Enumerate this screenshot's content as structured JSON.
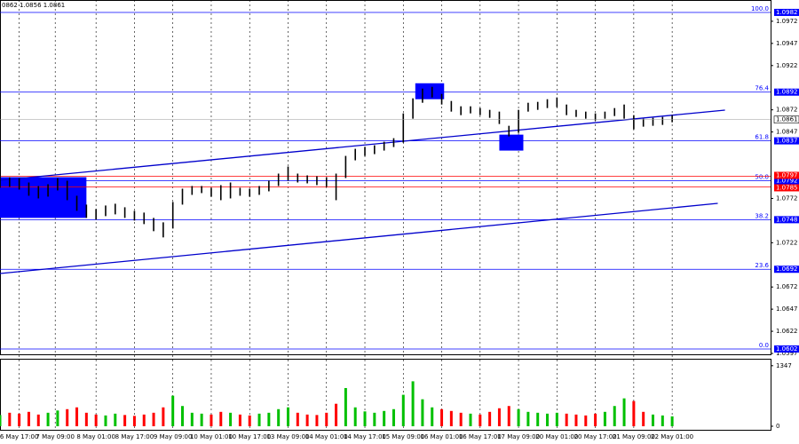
{
  "header": "0862 1.0856 1.0861",
  "chart_data": {
    "type": "hilo",
    "color": "#000000",
    "x": [
      0,
      4,
      8,
      12,
      16,
      20,
      24,
      28,
      32,
      36,
      40,
      44,
      48,
      52,
      56,
      60,
      64,
      68,
      72,
      76,
      80,
      84,
      88,
      92,
      96,
      100,
      104,
      108,
      112,
      116,
      120,
      124,
      128,
      132,
      136,
      140,
      144,
      148,
      152,
      156,
      160,
      164,
      168,
      172,
      176,
      180,
      184,
      188,
      192,
      196,
      200,
      204,
      208,
      212,
      216,
      220,
      224,
      228,
      232,
      236,
      240,
      244,
      248,
      252,
      256,
      260,
      264,
      268,
      272,
      276,
      280
    ],
    "high": [
      1.0798,
      1.0796,
      1.0795,
      1.079,
      1.0786,
      1.0788,
      1.0795,
      1.0792,
      1.0775,
      1.0765,
      1.076,
      1.0764,
      1.0766,
      1.0762,
      1.0758,
      1.0756,
      1.075,
      1.0745,
      1.0768,
      1.0783,
      1.0786,
      1.0786,
      1.0784,
      1.0787,
      1.079,
      1.0784,
      1.0783,
      1.0786,
      1.0792,
      1.08,
      1.0808,
      1.08,
      1.0798,
      1.0797,
      1.0796,
      1.08,
      1.082,
      1.0828,
      1.083,
      1.0832,
      1.0836,
      1.084,
      1.0868,
      1.0885,
      1.0896,
      1.0898,
      1.089,
      1.0882,
      1.0876,
      1.0876,
      1.0874,
      1.0872,
      1.087,
      1.0854,
      1.0872,
      1.088,
      1.0881,
      1.0884,
      1.0886,
      1.0878,
      1.0872,
      1.087,
      1.0868,
      1.087,
      1.0874,
      1.0878,
      1.0866,
      1.0862,
      1.0863,
      1.0864,
      1.0866
    ],
    "low": [
      1.0784,
      1.0785,
      1.0782,
      1.0775,
      1.0772,
      1.0774,
      1.0781,
      1.077,
      1.0758,
      1.075,
      1.0748,
      1.0752,
      1.0754,
      1.075,
      1.0747,
      1.0743,
      1.0735,
      1.0728,
      1.0738,
      1.0765,
      1.0776,
      1.0778,
      1.0774,
      1.077,
      1.0772,
      1.0775,
      1.0774,
      1.0776,
      1.078,
      1.0786,
      1.0792,
      1.079,
      1.0789,
      1.0787,
      1.0785,
      1.077,
      1.0795,
      1.0815,
      1.082,
      1.0822,
      1.0826,
      1.083,
      1.0835,
      1.0862,
      1.088,
      1.0886,
      1.0878,
      1.087,
      1.0866,
      1.0868,
      1.0866,
      1.0863,
      1.0856,
      1.0842,
      1.0846,
      1.087,
      1.0872,
      1.0874,
      1.0875,
      1.0866,
      1.0864,
      1.0862,
      1.086,
      1.0862,
      1.0865,
      1.0862,
      1.085,
      1.0853,
      1.0854,
      1.0855,
      1.0858
    ],
    "xlim": [
      0,
      321
    ],
    "ylim": [
      1.0595,
      1.0996
    ],
    "yticks": [
      1.0972,
      1.0947,
      1.0922,
      1.0872,
      1.0847,
      1.0772,
      1.0722,
      1.0672,
      1.0647,
      1.0622,
      1.0597
    ],
    "xticks": [
      {
        "value": 8,
        "label": "6 May 17:00"
      },
      {
        "value": 23,
        "label": "7 May 09:00"
      },
      {
        "value": 40,
        "label": "8 May 01:00"
      },
      {
        "value": 56,
        "label": "8 May 17:00"
      },
      {
        "value": 72,
        "label": "9 May 09:00"
      },
      {
        "value": 88,
        "label": "10 May 01:00"
      },
      {
        "value": 104,
        "label": "10 May 17:00"
      },
      {
        "value": 120,
        "label": "13 May 09:00"
      },
      {
        "value": 136,
        "label": "14 May 01:00"
      },
      {
        "value": 152,
        "label": "14 May 17:00"
      },
      {
        "value": 168,
        "label": "15 May 09:00"
      },
      {
        "value": 184,
        "label": "16 May 01:00"
      },
      {
        "value": 200,
        "label": "16 May 17:00"
      },
      {
        "value": 216,
        "label": "17 May 09:00"
      },
      {
        "value": 232,
        "label": "20 May 01:00"
      },
      {
        "value": 248,
        "label": "20 May 17:00"
      },
      {
        "value": 264,
        "label": "21 May 09:00"
      },
      {
        "value": 280,
        "label": "22 May 01:00"
      }
    ],
    "grid": true,
    "fib_color": "#0000ff",
    "fib_levels": [
      {
        "level": "100.0",
        "value": 1.0982
      },
      {
        "level": "76.4",
        "value": 1.0892
      },
      {
        "level": "61.8",
        "value": 1.0837
      },
      {
        "level": "50.0",
        "value": 1.0792
      },
      {
        "level": "38.2",
        "value": 1.0748
      },
      {
        "level": "23.6",
        "value": 1.0692
      },
      {
        "level": "0.0",
        "value": 1.0602
      }
    ],
    "level_color": "#ff0000",
    "levels": [
      1.0797,
      1.0785
    ],
    "last_price": 1.0861,
    "zone_color": "#0000ff",
    "zones": [
      {
        "x": [
          0,
          36
        ],
        "y": [
          1.0796,
          1.075
        ]
      },
      {
        "x": [
          173,
          185
        ],
        "y": [
          1.0902,
          1.0884
        ]
      },
      {
        "x": [
          208,
          218
        ],
        "y": [
          1.0844,
          1.0826
        ]
      }
    ],
    "trendline_color": "#0000cc",
    "trendlines": [
      {
        "x": [
          0,
          302
        ],
        "y": [
          1.07925,
          1.08717
        ]
      },
      {
        "x": [
          0,
          299
        ],
        "y": [
          1.06872,
          1.07664
        ]
      }
    ],
    "volume": {
      "values": [
        250,
        300,
        280,
        320,
        260,
        300,
        350,
        380,
        420,
        300,
        260,
        240,
        280,
        250,
        230,
        260,
        300,
        420,
        680,
        450,
        300,
        280,
        260,
        320,
        300,
        260,
        240,
        280,
        300,
        380,
        420,
        300,
        260,
        250,
        300,
        500,
        850,
        420,
        330,
        300,
        340,
        380,
        700,
        1000,
        600,
        420,
        380,
        340,
        300,
        280,
        260,
        320,
        400,
        450,
        380,
        320,
        300,
        280,
        300,
        280,
        260,
        240,
        280,
        320,
        450,
        620,
        560,
        320,
        260,
        240,
        220
      ],
      "ylim": [
        0,
        1482
      ],
      "yticks": [
        0,
        1347
      ],
      "up_color": "#00c000",
      "down_color": "#ff0000"
    }
  }
}
